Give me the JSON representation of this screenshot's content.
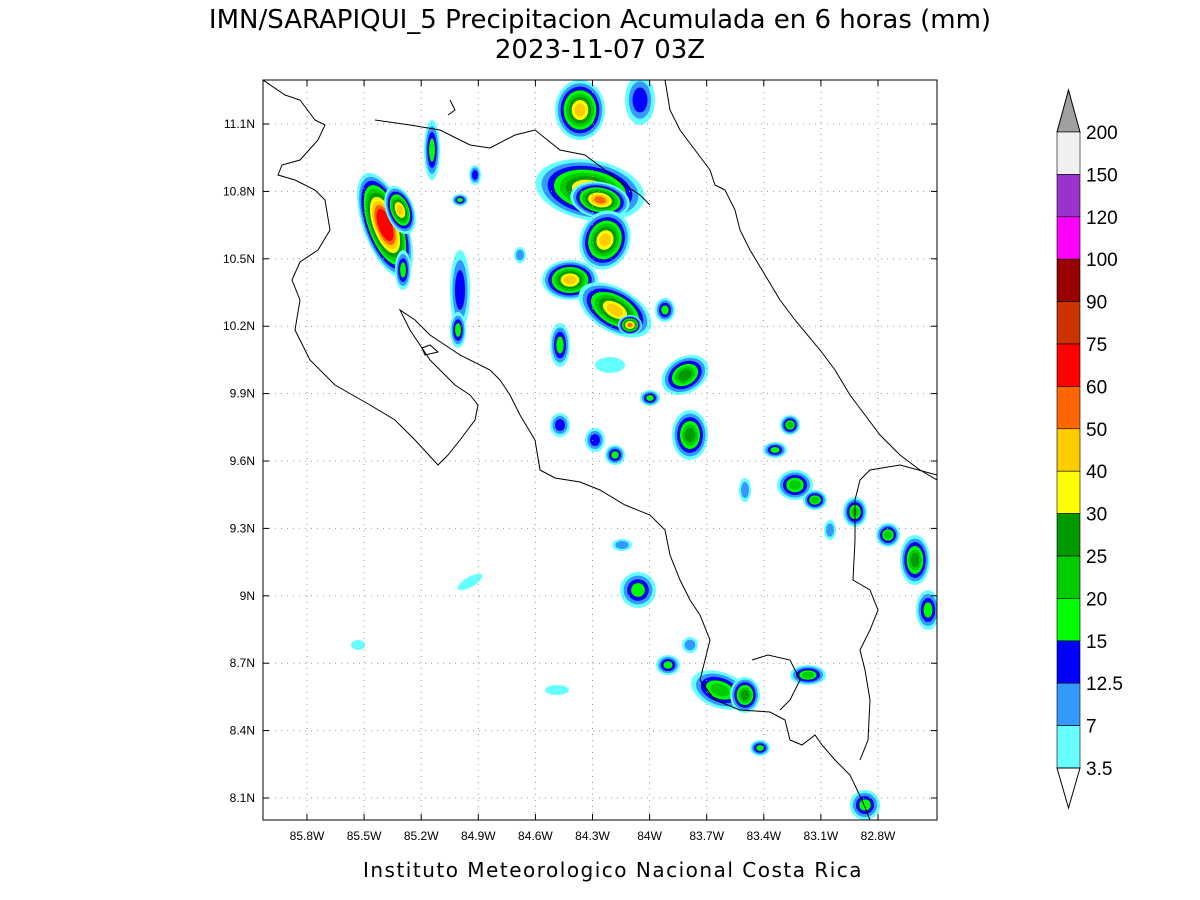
{
  "header": {
    "title": "IMN/SARAPIQUI_5 Precipitacion Acumulada en 6 horas (mm)",
    "subtitle": "2023-11-07 03Z"
  },
  "map": {
    "lat_ticks": [
      "11.1N",
      "10.8N",
      "10.5N",
      "10.2N",
      "9.9N",
      "9.6N",
      "9.3N",
      "9N",
      "8.7N",
      "8.4N",
      "8.1N"
    ],
    "lon_ticks": [
      "85.8W",
      "85.5W",
      "85.2W",
      "84.9W",
      "84.6W",
      "84.3W",
      "84W",
      "83.7W",
      "83.4W",
      "83.1W",
      "82.8W"
    ]
  },
  "colorbar": {
    "levels": [
      200,
      150,
      120,
      100,
      90,
      75,
      60,
      50,
      40,
      30,
      25,
      20,
      15,
      12.5,
      7,
      3.5
    ],
    "colors": [
      "#a0a0a0",
      "#f0f0f0",
      "#9933cc",
      "#ff00ff",
      "#990000",
      "#cc3300",
      "#ff0000",
      "#ff6600",
      "#ffcc00",
      "#ffff00",
      "#009900",
      "#00cc00",
      "#00ff00",
      "#0000ff",
      "#3399ff",
      "#66ffff",
      "#ffffff"
    ]
  },
  "footer": "Instituto Meteorologico Nacional Costa Rica"
}
